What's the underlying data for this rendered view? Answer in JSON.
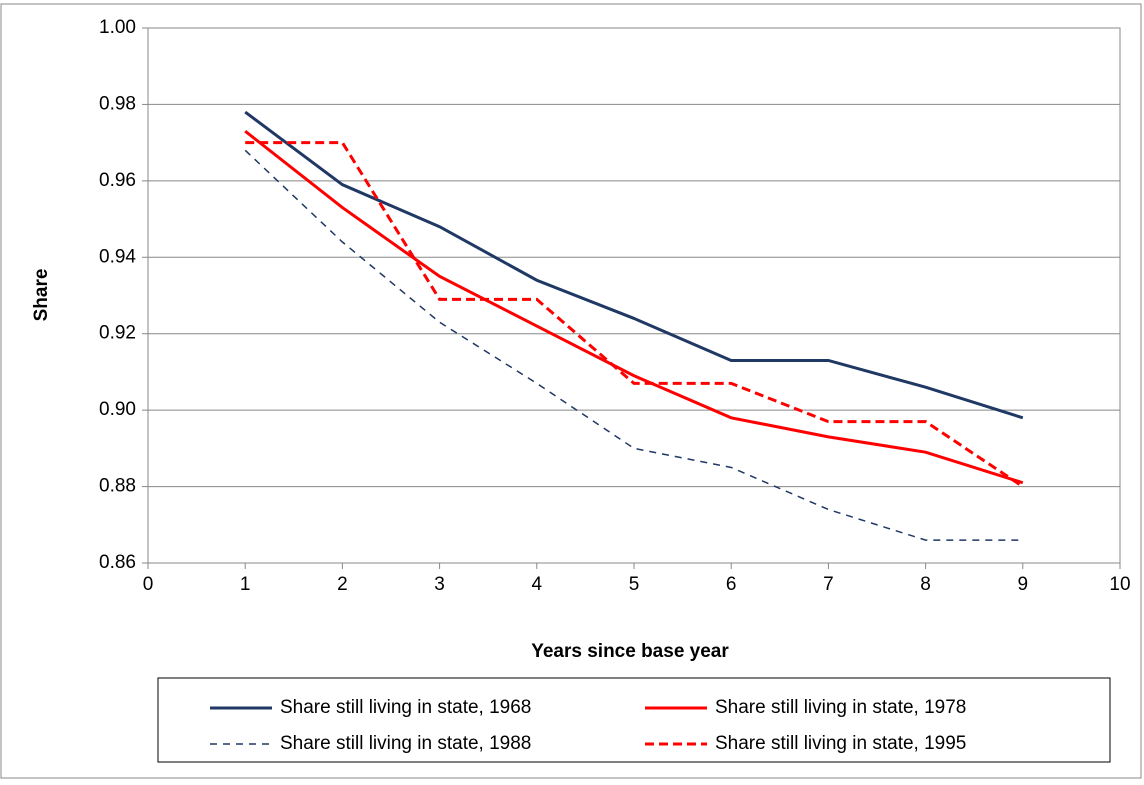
{
  "chart_data": {
    "type": "line",
    "x_label": "Years since base year",
    "y_label": "Share",
    "x": [
      1,
      2,
      3,
      4,
      5,
      6,
      7,
      8,
      9
    ],
    "series": [
      {
        "name": "Share still living in state, 1968",
        "color": "#1f3864",
        "line_style": "solid",
        "values": [
          0.978,
          0.959,
          0.948,
          0.934,
          0.924,
          0.913,
          0.913,
          0.906,
          0.898
        ]
      },
      {
        "name": "Share still living in state, 1978",
        "color": "#ff0000",
        "line_style": "solid",
        "values": [
          0.973,
          0.953,
          0.935,
          0.922,
          0.909,
          0.898,
          0.893,
          0.889,
          0.881
        ]
      },
      {
        "name": "Share still living in state, 1988",
        "color": "#1f3864",
        "line_style": "dashed-thin",
        "values": [
          0.968,
          0.944,
          0.923,
          0.907,
          0.89,
          0.885,
          0.874,
          0.866,
          0.866
        ]
      },
      {
        "name": "Share still living in state, 1995",
        "color": "#ff0000",
        "line_style": "dashed",
        "values": [
          0.97,
          0.97,
          0.929,
          0.929,
          0.907,
          0.907,
          0.897,
          0.897,
          0.88
        ]
      }
    ],
    "xlim": [
      0,
      10
    ],
    "xticks": [
      0,
      1,
      2,
      3,
      4,
      5,
      6,
      7,
      8,
      9,
      10
    ],
    "ylim": [
      0.86,
      1.0
    ],
    "yticks": [
      {
        "value": 0.86,
        "label": "0.86"
      },
      {
        "value": 0.88,
        "label": "0.88"
      },
      {
        "value": 0.9,
        "label": "0.90"
      },
      {
        "value": 0.92,
        "label": "0.92"
      },
      {
        "value": 0.94,
        "label": "0.94"
      },
      {
        "value": 0.96,
        "label": "0.96"
      },
      {
        "value": 0.98,
        "label": "0.98"
      },
      {
        "value": 1.0,
        "label": "1.00"
      }
    ],
    "grid": true,
    "legend": "bottom"
  }
}
